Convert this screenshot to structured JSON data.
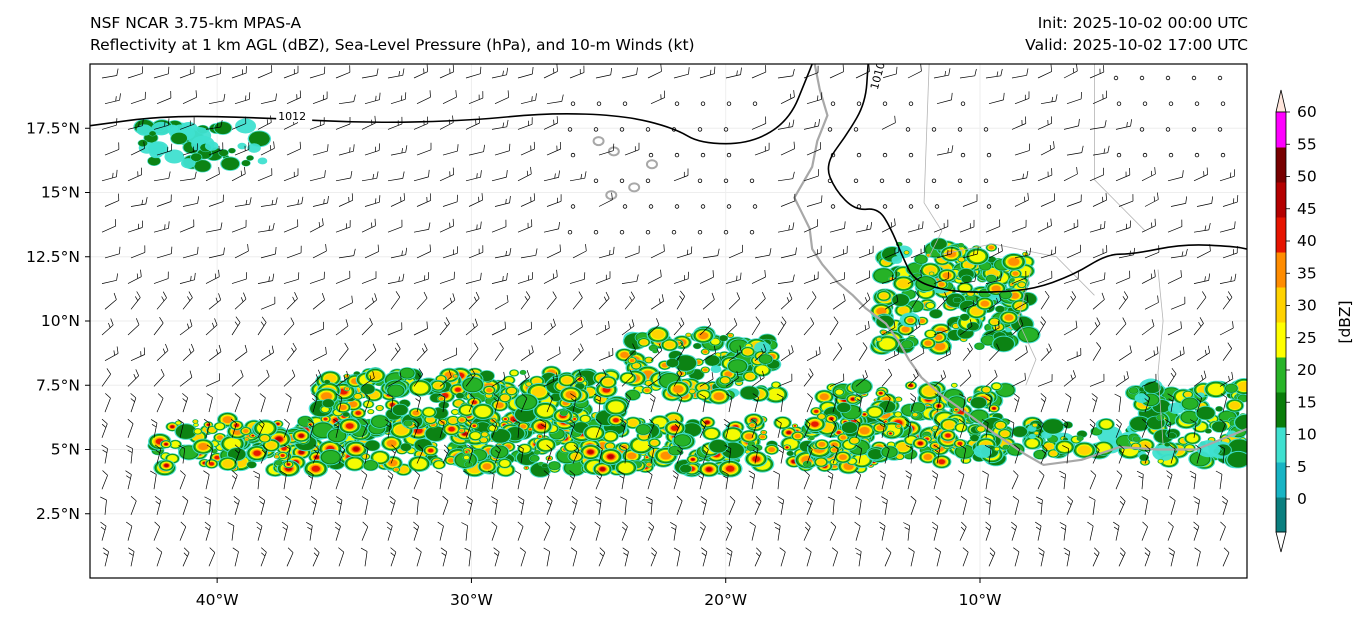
{
  "header": {
    "model": "NSF NCAR 3.75-km MPAS-A",
    "fields": "Reflectivity at 1 km AGL (dBZ), Sea-Level Pressure (hPa), and 10-m Winds (kt)",
    "init": "Init: 2025-10-02 00:00 UTC",
    "valid": "Valid: 2025-10-02 17:00 UTC"
  },
  "map": {
    "lon_range": [
      -45,
      0.5
    ],
    "lat_range": [
      0,
      20
    ],
    "lon_ticks": [
      {
        "lon": -40,
        "label": "40°W"
      },
      {
        "lon": -30,
        "label": "30°W"
      },
      {
        "lon": -20,
        "label": "20°W"
      },
      {
        "lon": -10,
        "label": "10°W"
      }
    ],
    "lat_ticks": [
      {
        "lat": 2.5,
        "label": "2.5°N"
      },
      {
        "lat": 5,
        "label": "5°N"
      },
      {
        "lat": 7.5,
        "label": "7.5°N"
      },
      {
        "lat": 10,
        "label": "10°N"
      },
      {
        "lat": 12.5,
        "label": "12.5°N"
      },
      {
        "lat": 15,
        "label": "15°N"
      },
      {
        "lat": 17.5,
        "label": "17.5°N"
      }
    ],
    "isobars": [
      {
        "label": "1012",
        "points": [
          [
            -45,
            17.6
          ],
          [
            -42,
            18.0
          ],
          [
            -38,
            17.9
          ],
          [
            -34,
            17.7
          ],
          [
            -30,
            17.8
          ],
          [
            -27,
            18.1
          ],
          [
            -24,
            18.0
          ],
          [
            -22,
            17.5
          ],
          [
            -21,
            16.9
          ],
          [
            -19,
            16.9
          ],
          [
            -17.5,
            17.8
          ],
          [
            -16.8,
            19.5
          ],
          [
            -16.6,
            20
          ]
        ]
      },
      {
        "label": "1010",
        "points": [
          [
            -14.4,
            20
          ],
          [
            -14.5,
            18.5
          ],
          [
            -15.2,
            17.3
          ],
          [
            -16.1,
            16.1
          ],
          [
            -15.7,
            15.1
          ],
          [
            -14.9,
            14.3
          ],
          [
            -14.0,
            14.4
          ],
          [
            -13.5,
            13.6
          ],
          [
            -13.0,
            12.4
          ],
          [
            -12.6,
            11.6
          ],
          [
            -11.5,
            11.2
          ],
          [
            -10.0,
            11.1
          ],
          [
            -8.0,
            11.2
          ],
          [
            -6.3,
            11.8
          ],
          [
            -5.0,
            12.6
          ],
          [
            -4.0,
            12.6
          ],
          [
            -2.0,
            13.0
          ],
          [
            0,
            12.9
          ],
          [
            0.5,
            12.8
          ]
        ]
      }
    ],
    "reflectivity_bands": [
      {
        "lon": [
          -42.5,
          -14
        ],
        "lat": [
          4.2,
          6.2
        ],
        "peak_dbz": 50
      },
      {
        "lon": [
          -36,
          -24
        ],
        "lat": [
          5.5,
          8.0
        ],
        "peak_dbz": 45
      },
      {
        "lon": [
          -24,
          -18
        ],
        "lat": [
          7.0,
          9.5
        ],
        "peak_dbz": 40
      },
      {
        "lon": [
          -16.5,
          -9
        ],
        "lat": [
          4.5,
          7.5
        ],
        "peak_dbz": 50
      },
      {
        "lon": [
          -14,
          -8
        ],
        "lat": [
          9,
          13
        ],
        "peak_dbz": 40
      },
      {
        "lon": [
          -10,
          -4
        ],
        "lat": [
          4.8,
          6.0
        ],
        "peak_dbz": 35
      },
      {
        "lon": [
          -4,
          0.5
        ],
        "lat": [
          4.5,
          7.5
        ],
        "peak_dbz": 35
      },
      {
        "lon": [
          -43,
          -38
        ],
        "lat": [
          16,
          17.6
        ],
        "peak_dbz": 20
      }
    ]
  },
  "colorbar": {
    "label": "[dBZ]",
    "ticks": [
      "0",
      "5",
      "10",
      "15",
      "20",
      "25",
      "30",
      "35",
      "40",
      "45",
      "50",
      "55",
      "60"
    ],
    "colors": [
      "#ffffff",
      "#0b7f7f",
      "#18b4c4",
      "#3fe0d0",
      "#0a7d0a",
      "#28b428",
      "#ffff00",
      "#ffd200",
      "#ff8c00",
      "#e61400",
      "#b40000",
      "#780000",
      "#ff00ff",
      "#ffe6dc"
    ]
  }
}
